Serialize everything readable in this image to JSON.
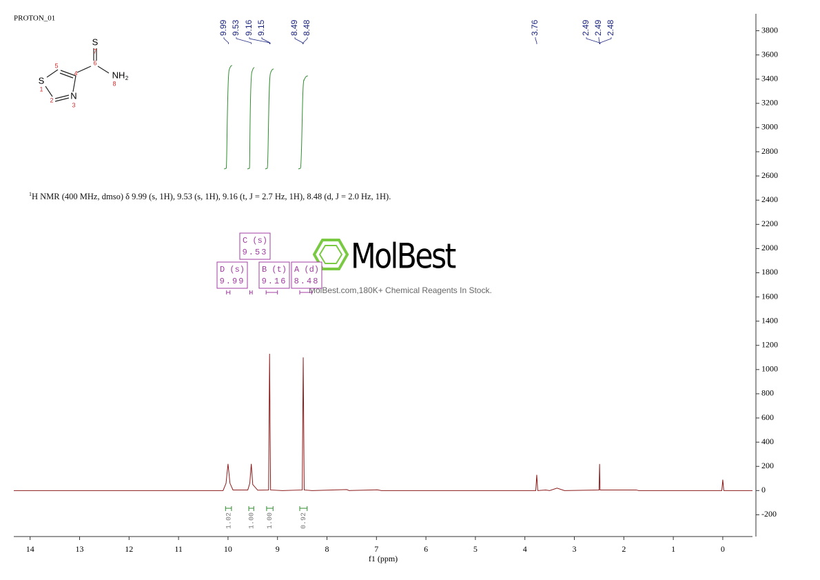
{
  "chart_data": {
    "type": "line",
    "title": "PROTON_01",
    "x_label": "f1 (ppm)",
    "xlim": [
      14.33,
      -0.6
    ],
    "xticks": [
      14,
      13,
      12,
      11,
      10,
      9,
      8,
      7,
      6,
      5,
      4,
      3,
      2,
      1,
      0
    ],
    "ylim": [
      -380,
      3940
    ],
    "yticks": [
      -200,
      0,
      200,
      400,
      600,
      800,
      1000,
      1200,
      1400,
      1600,
      1800,
      2000,
      2200,
      2400,
      2600,
      2800,
      3000,
      3200,
      3400,
      3600,
      3800
    ],
    "series": [
      {
        "color": "#8b1a1a",
        "x": [
          14.33,
          10.1,
          10.04,
          10.0,
          9.96,
          9.9,
          9.6,
          9.56,
          9.53,
          9.5,
          9.4,
          9.18,
          9.16,
          9.14,
          8.9,
          8.5,
          8.48,
          8.46,
          8.3,
          7.6,
          7.55,
          6.98,
          6.9,
          3.78,
          3.76,
          3.74,
          3.58,
          3.5,
          3.35,
          3.2,
          2.5,
          2.49,
          2.48,
          1.75,
          1.7,
          0.02,
          0.0,
          -0.02,
          -0.6
        ],
        "values": [
          0,
          0,
          60,
          220,
          60,
          5,
          5,
          60,
          220,
          50,
          3,
          5,
          1130,
          5,
          0,
          5,
          1100,
          5,
          0,
          8,
          0,
          6,
          0,
          0,
          130,
          0,
          5,
          0,
          20,
          0,
          5,
          220,
          5,
          5,
          0,
          0,
          90,
          0,
          0
        ]
      }
    ],
    "peak_labels": [
      9.99,
      9.53,
      9.16,
      9.15,
      8.49,
      8.48,
      3.76,
      2.49,
      2.49,
      2.48
    ],
    "peak_color": "#1a237e",
    "multiplets": [
      {
        "label": "D (s)",
        "shift": 9.99,
        "range": [
          10.03,
          9.96
        ]
      },
      {
        "label": "C (s)",
        "shift": 9.53,
        "range": [
          9.56,
          9.51
        ]
      },
      {
        "label": "B (t)",
        "shift": 9.16,
        "range": [
          9.23,
          9.0
        ]
      },
      {
        "label": "A (d)",
        "shift": 8.48,
        "range": [
          8.55,
          8.31
        ]
      }
    ],
    "multiplet_color": "#a03ca0",
    "integrals": [
      {
        "range": [
          10.05,
          9.93
        ],
        "value": 1.02
      },
      {
        "range": [
          9.58,
          9.48
        ],
        "value": {
          "value": 1,
          "label": "1.00"
        }
      },
      {
        "range": [
          9.22,
          9.09
        ],
        "value": {
          "value": 1,
          "label": "1.00"
        }
      },
      {
        "range": [
          8.55,
          8.4
        ],
        "value": 0.92
      }
    ],
    "integral_color": "#2e8b2e"
  },
  "description_sup": "1",
  "description": "H NMR (400 MHz, dmso) δ 9.99 (s, 1H), 9.53 (s, 1H), 9.16 (t, J = 2.7 Hz, 1H), 8.48 (d, J = 2.0 Hz, 1H).",
  "molecule": {
    "atoms": [
      "S",
      "NH",
      "2",
      "S",
      "N"
    ],
    "numbers": [
      "1",
      "2",
      "3",
      "4",
      "5",
      "6",
      "7",
      "8"
    ]
  },
  "watermark": {
    "title": "MolBest",
    "subtitle": "MolBest.com,180K+ Chemical Reagents In Stock."
  }
}
